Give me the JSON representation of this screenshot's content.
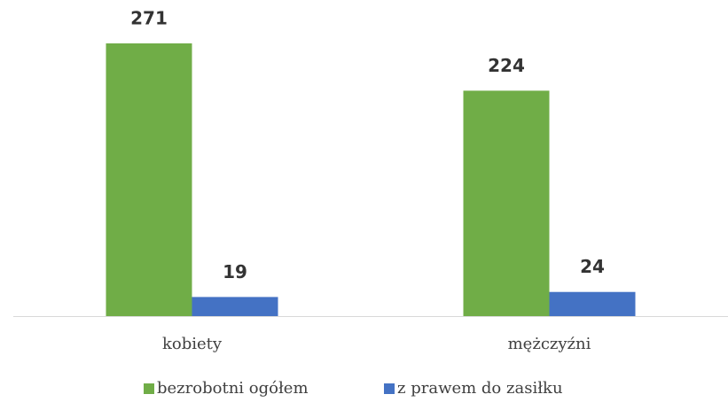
{
  "chart_data": {
    "type": "bar",
    "categories": [
      "kobiety",
      "mężczyźni"
    ],
    "series": [
      {
        "name": "bezrobotni ogółem",
        "color": "#70ad47",
        "values": [
          271,
          224
        ]
      },
      {
        "name": "z prawem do zasiłku",
        "color": "#4472c4",
        "values": [
          19,
          24
        ]
      }
    ],
    "legend": "bottom"
  }
}
